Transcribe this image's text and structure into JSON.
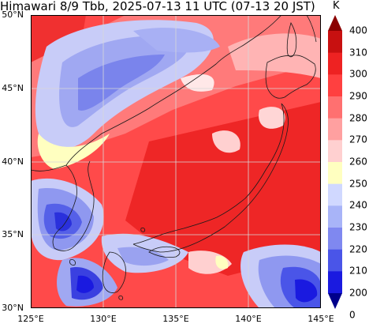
{
  "title": "Himawari 8/9 Tbb, 2025-07-13 11 UTC (07-13 20 JST)",
  "colorbar": {
    "unit": "K",
    "labels": [
      "400",
      "310",
      "300",
      "290",
      "280",
      "270",
      "260",
      "250",
      "240",
      "230",
      "220",
      "210",
      "200",
      "0"
    ],
    "colors": [
      "#8b0000",
      "#c81010",
      "#ee2222",
      "#ff4040",
      "#ff7070",
      "#ffa0a0",
      "#ffd0d0",
      "#ffffc0",
      "#d0d8ff",
      "#a8b4f8",
      "#7f88f0",
      "#4a55e8",
      "#1a1ae0",
      "#00008b"
    ]
  },
  "axes": {
    "x_ticks": [
      "125°E",
      "130°E",
      "135°E",
      "140°E",
      "145°E"
    ],
    "y_ticks": [
      "50°N",
      "45°N",
      "40°N",
      "35°N",
      "30°N"
    ]
  }
}
